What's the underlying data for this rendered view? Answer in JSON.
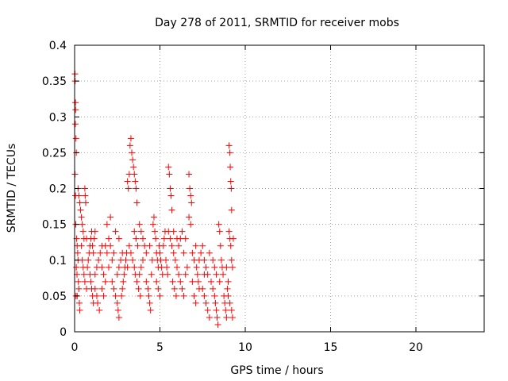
{
  "chart_data": {
    "type": "scatter",
    "title": "Day 278 of 2011, SRMTID for receiver mobs",
    "xlabel": "GPS time / hours",
    "ylabel": "SRMTID / TECUs",
    "xlim": [
      0,
      24
    ],
    "ylim": [
      0,
      0.4
    ],
    "xticks": [
      0,
      5,
      10,
      15,
      20
    ],
    "xtick_labels": [
      "0",
      "5",
      "10",
      "15",
      "20"
    ],
    "yticks": [
      0,
      0.05,
      0.1,
      0.15,
      0.2,
      0.25,
      0.3,
      0.35,
      0.4
    ],
    "ytick_labels": [
      "0",
      "0.05",
      "0.1",
      "0.15",
      "0.2",
      "0.25",
      "0.3",
      "0.35",
      "0.4"
    ],
    "grid": true,
    "marker": "+",
    "colors": {
      "series": "#ff0000",
      "grid": "#a0a0a0",
      "axis": "#000000"
    },
    "series": [
      {
        "name": "mobs",
        "points": [
          [
            0.02,
            0.36
          ],
          [
            0.03,
            0.35
          ],
          [
            0.05,
            0.32
          ],
          [
            0.06,
            0.31
          ],
          [
            0.04,
            0.29
          ],
          [
            0.08,
            0.27
          ],
          [
            0.1,
            0.25
          ],
          [
            0.02,
            0.22
          ],
          [
            0.05,
            0.19
          ],
          [
            0.07,
            0.15
          ],
          [
            0.12,
            0.13
          ],
          [
            0.15,
            0.12
          ],
          [
            0.18,
            0.11
          ],
          [
            0.2,
            0.1
          ],
          [
            0.1,
            0.09
          ],
          [
            0.14,
            0.08
          ],
          [
            0.22,
            0.07
          ],
          [
            0.25,
            0.06
          ],
          [
            0.08,
            0.05
          ],
          [
            0.15,
            0.05
          ],
          [
            0.28,
            0.04
          ],
          [
            0.3,
            0.03
          ],
          [
            0.2,
            0.2
          ],
          [
            0.25,
            0.19
          ],
          [
            0.3,
            0.18
          ],
          [
            0.35,
            0.17
          ],
          [
            0.4,
            0.16
          ],
          [
            0.45,
            0.15
          ],
          [
            0.5,
            0.14
          ],
          [
            0.55,
            0.13
          ],
          [
            0.6,
            0.2
          ],
          [
            0.62,
            0.19
          ],
          [
            0.65,
            0.18
          ],
          [
            0.4,
            0.12
          ],
          [
            0.45,
            0.1
          ],
          [
            0.5,
            0.09
          ],
          [
            0.55,
            0.08
          ],
          [
            0.6,
            0.07
          ],
          [
            0.7,
            0.06
          ],
          [
            0.75,
            0.09
          ],
          [
            0.8,
            0.1
          ],
          [
            0.85,
            0.11
          ],
          [
            0.9,
            0.12
          ],
          [
            0.95,
            0.13
          ],
          [
            1.0,
            0.14
          ],
          [
            1.05,
            0.12
          ],
          [
            1.1,
            0.11
          ],
          [
            1.15,
            0.13
          ],
          [
            1.2,
            0.14
          ],
          [
            0.9,
            0.08
          ],
          [
            0.95,
            0.07
          ],
          [
            1.0,
            0.06
          ],
          [
            1.05,
            0.05
          ],
          [
            1.1,
            0.04
          ],
          [
            1.2,
            0.08
          ],
          [
            1.3,
            0.09
          ],
          [
            1.4,
            0.1
          ],
          [
            1.5,
            0.11
          ],
          [
            1.6,
            0.09
          ],
          [
            1.7,
            0.08
          ],
          [
            1.8,
            0.07
          ],
          [
            1.3,
            0.05
          ],
          [
            1.35,
            0.04
          ],
          [
            1.45,
            0.03
          ],
          [
            1.6,
            0.06
          ],
          [
            1.7,
            0.05
          ],
          [
            1.8,
            0.12
          ],
          [
            1.9,
            0.11
          ],
          [
            2.0,
            0.13
          ],
          [
            2.1,
            0.12
          ],
          [
            2.0,
            0.09
          ],
          [
            2.2,
            0.1
          ],
          [
            2.3,
            0.11
          ],
          [
            2.4,
            0.14
          ],
          [
            2.2,
            0.07
          ],
          [
            2.3,
            0.06
          ],
          [
            2.4,
            0.05
          ],
          [
            2.5,
            0.04
          ],
          [
            2.55,
            0.03
          ],
          [
            2.6,
            0.02
          ],
          [
            2.5,
            0.08
          ],
          [
            2.6,
            0.09
          ],
          [
            2.7,
            0.1
          ],
          [
            2.75,
            0.05
          ],
          [
            2.8,
            0.06
          ],
          [
            2.85,
            0.07
          ],
          [
            2.9,
            0.08
          ],
          [
            2.95,
            0.09
          ],
          [
            3.0,
            0.1
          ],
          [
            3.05,
            0.11
          ],
          [
            3.1,
            0.21
          ],
          [
            3.15,
            0.2
          ],
          [
            3.2,
            0.22
          ],
          [
            3.25,
            0.26
          ],
          [
            3.3,
            0.27
          ],
          [
            3.35,
            0.25
          ],
          [
            3.4,
            0.24
          ],
          [
            3.45,
            0.23
          ],
          [
            3.5,
            0.22
          ],
          [
            3.55,
            0.21
          ],
          [
            3.6,
            0.2
          ],
          [
            3.65,
            0.18
          ],
          [
            3.5,
            0.14
          ],
          [
            3.6,
            0.13
          ],
          [
            3.7,
            0.12
          ],
          [
            3.8,
            0.15
          ],
          [
            3.9,
            0.14
          ],
          [
            3.4,
            0.1
          ],
          [
            3.5,
            0.09
          ],
          [
            3.55,
            0.08
          ],
          [
            3.65,
            0.07
          ],
          [
            3.75,
            0.06
          ],
          [
            3.85,
            0.05
          ],
          [
            3.2,
            0.12
          ],
          [
            3.3,
            0.11
          ],
          [
            3.1,
            0.09
          ],
          [
            4.0,
            0.13
          ],
          [
            4.1,
            0.12
          ],
          [
            4.2,
            0.11
          ],
          [
            4.3,
            0.06
          ],
          [
            4.35,
            0.05
          ],
          [
            4.4,
            0.04
          ],
          [
            4.45,
            0.03
          ],
          [
            4.2,
            0.07
          ],
          [
            4.5,
            0.08
          ],
          [
            4.55,
            0.1
          ],
          [
            4.6,
            0.15
          ],
          [
            4.65,
            0.16
          ],
          [
            4.7,
            0.14
          ],
          [
            4.75,
            0.13
          ],
          [
            4.8,
            0.11
          ],
          [
            4.85,
            0.1
          ],
          [
            4.9,
            0.09
          ],
          [
            4.95,
            0.12
          ],
          [
            5.0,
            0.11
          ],
          [
            5.05,
            0.1
          ],
          [
            5.1,
            0.09
          ],
          [
            5.15,
            0.08
          ],
          [
            4.8,
            0.07
          ],
          [
            4.9,
            0.06
          ],
          [
            5.0,
            0.05
          ],
          [
            5.2,
            0.12
          ],
          [
            5.25,
            0.13
          ],
          [
            5.3,
            0.14
          ],
          [
            5.35,
            0.1
          ],
          [
            5.4,
            0.09
          ],
          [
            5.45,
            0.08
          ],
          [
            5.5,
            0.23
          ],
          [
            5.55,
            0.22
          ],
          [
            5.6,
            0.2
          ],
          [
            5.65,
            0.19
          ],
          [
            5.7,
            0.17
          ],
          [
            5.5,
            0.14
          ],
          [
            5.6,
            0.13
          ],
          [
            5.7,
            0.12
          ],
          [
            5.8,
            0.11
          ],
          [
            5.9,
            0.1
          ],
          [
            6.0,
            0.09
          ],
          [
            5.75,
            0.07
          ],
          [
            5.85,
            0.06
          ],
          [
            5.95,
            0.05
          ],
          [
            6.1,
            0.12
          ],
          [
            6.2,
            0.13
          ],
          [
            6.3,
            0.14
          ],
          [
            6.4,
            0.11
          ],
          [
            6.1,
            0.08
          ],
          [
            6.2,
            0.07
          ],
          [
            6.3,
            0.06
          ],
          [
            6.4,
            0.05
          ],
          [
            6.5,
            0.08
          ],
          [
            6.6,
            0.09
          ],
          [
            6.7,
            0.22
          ],
          [
            6.75,
            0.2
          ],
          [
            6.8,
            0.19
          ],
          [
            6.85,
            0.18
          ],
          [
            6.7,
            0.16
          ],
          [
            6.8,
            0.15
          ],
          [
            6.9,
            0.11
          ],
          [
            7.0,
            0.1
          ],
          [
            7.1,
            0.12
          ],
          [
            7.15,
            0.09
          ],
          [
            7.2,
            0.08
          ],
          [
            7.25,
            0.07
          ],
          [
            7.3,
            0.06
          ],
          [
            7.0,
            0.05
          ],
          [
            7.1,
            0.04
          ],
          [
            7.4,
            0.11
          ],
          [
            7.5,
            0.12
          ],
          [
            7.6,
            0.1
          ],
          [
            7.7,
            0.09
          ],
          [
            7.8,
            0.08
          ],
          [
            7.5,
            0.06
          ],
          [
            7.6,
            0.05
          ],
          [
            7.7,
            0.04
          ],
          [
            7.8,
            0.03
          ],
          [
            7.9,
            0.02
          ],
          [
            8.0,
            0.07
          ],
          [
            8.1,
            0.06
          ],
          [
            8.2,
            0.05
          ],
          [
            8.25,
            0.04
          ],
          [
            8.3,
            0.03
          ],
          [
            8.35,
            0.02
          ],
          [
            8.4,
            0.01
          ],
          [
            8.45,
            0.15
          ],
          [
            8.5,
            0.14
          ],
          [
            8.55,
            0.12
          ],
          [
            8.6,
            0.1
          ],
          [
            8.65,
            0.09
          ],
          [
            8.7,
            0.08
          ],
          [
            8.2,
            0.09
          ],
          [
            8.1,
            0.1
          ],
          [
            8.3,
            0.08
          ],
          [
            8.75,
            0.05
          ],
          [
            8.8,
            0.04
          ],
          [
            8.85,
            0.03
          ],
          [
            8.9,
            0.02
          ],
          [
            8.95,
            0.06
          ],
          [
            9.0,
            0.05
          ],
          [
            9.05,
            0.26
          ],
          [
            9.1,
            0.25
          ],
          [
            9.12,
            0.23
          ],
          [
            9.15,
            0.21
          ],
          [
            9.18,
            0.2
          ],
          [
            9.2,
            0.17
          ],
          [
            9.05,
            0.14
          ],
          [
            9.1,
            0.13
          ],
          [
            9.15,
            0.12
          ],
          [
            9.2,
            0.1
          ],
          [
            9.25,
            0.09
          ],
          [
            9.0,
            0.07
          ],
          [
            9.1,
            0.04
          ],
          [
            9.2,
            0.03
          ],
          [
            9.25,
            0.02
          ],
          [
            9.3,
            0.13
          ],
          [
            2.1,
            0.16
          ],
          [
            1.9,
            0.15
          ],
          [
            0.7,
            0.13
          ],
          [
            1.2,
            0.06
          ],
          [
            2.8,
            0.11
          ],
          [
            3.9,
            0.09
          ],
          [
            4.0,
            0.1
          ],
          [
            4.4,
            0.12
          ],
          [
            5.8,
            0.14
          ],
          [
            6.5,
            0.13
          ],
          [
            7.3,
            0.1
          ],
          [
            7.9,
            0.11
          ],
          [
            8.5,
            0.07
          ],
          [
            2.6,
            0.13
          ],
          [
            1.6,
            0.12
          ],
          [
            3.8,
            0.08
          ],
          [
            6.0,
            0.13
          ],
          [
            6.9,
            0.07
          ],
          [
            7.6,
            0.08
          ],
          [
            8.9,
            0.09
          ]
        ]
      }
    ]
  }
}
